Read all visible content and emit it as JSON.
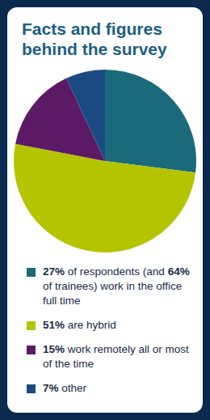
{
  "chart_data": {
    "type": "pie",
    "title": "Facts and figures behind the survey",
    "categories": [
      "27% of respondents (and 64% of trainees) work in the office full time",
      "51% are hybrid",
      "15% work remotely all or most of the time",
      "7% other"
    ],
    "values": [
      27,
      51,
      15,
      7
    ],
    "colors": [
      "#1b6a7b",
      "#b5c400",
      "#5c1a66",
      "#1b4a82"
    ],
    "legend": "bottom"
  }
}
